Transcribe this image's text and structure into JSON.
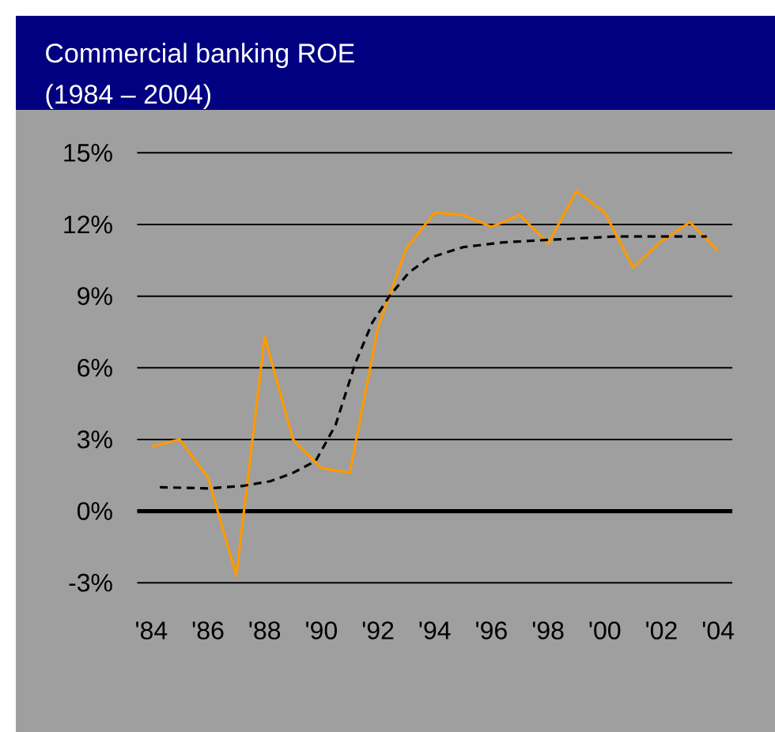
{
  "chart_data": {
    "type": "line",
    "title": "Commercial banking ROE",
    "subtitle": "(1984 – 2004)",
    "x": [
      1984,
      1985,
      1986,
      1987,
      1988,
      1989,
      1990,
      1991,
      1992,
      1993,
      1994,
      1995,
      1996,
      1997,
      1998,
      1999,
      2000,
      2001,
      2002,
      2003,
      2004
    ],
    "series": [
      {
        "color": "#ff9900",
        "values": [
          2.7,
          3.0,
          1.4,
          -2.7,
          7.3,
          3.0,
          1.8,
          1.6,
          7.7,
          11.0,
          12.5,
          12.4,
          11.9,
          12.4,
          11.2,
          13.4,
          12.5,
          10.2,
          11.3,
          12.1,
          10.9
        ]
      },
      {
        "type": "line",
        "color": "#000000",
        "line_style": "dashed",
        "x": [
          1984.3,
          1986,
          1987.2,
          1988.2,
          1989,
          1989.8,
          1990.5,
          1991.2,
          1991.8,
          1992.4,
          1993.1,
          1993.8,
          1995,
          1996.4,
          1997.9,
          2000.4,
          2003.6
        ],
        "values": [
          1.0,
          0.95,
          1.05,
          1.25,
          1.6,
          2.1,
          3.6,
          6.2,
          7.9,
          9.0,
          10.0,
          10.6,
          11.05,
          11.25,
          11.35,
          11.5,
          11.5
        ]
      }
    ],
    "xlim": [
      1983.5,
      2004.5
    ],
    "ylim": [
      -3,
      15
    ],
    "xticks": [
      {
        "value": 1984,
        "label": "'84"
      },
      {
        "value": 1986,
        "label": "'86"
      },
      {
        "value": 1988,
        "label": "'88"
      },
      {
        "value": 1990,
        "label": "'90"
      },
      {
        "value": 1992,
        "label": "'92"
      },
      {
        "value": 1994,
        "label": "'94"
      },
      {
        "value": 1996,
        "label": "'96"
      },
      {
        "value": 1998,
        "label": "'98"
      },
      {
        "value": 2000,
        "label": "'00"
      },
      {
        "value": 2002,
        "label": "'02"
      },
      {
        "value": 2004,
        "label": "'04"
      }
    ],
    "yticks": [
      {
        "value": -3,
        "label": "-3%"
      },
      {
        "value": 0,
        "label": "0%"
      },
      {
        "value": 3,
        "label": "3%"
      },
      {
        "value": 6,
        "label": "6%"
      },
      {
        "value": 9,
        "label": "9%"
      },
      {
        "value": 12,
        "label": "12%"
      },
      {
        "value": 15,
        "label": "15%"
      }
    ],
    "grid": "y",
    "ref_lines": [
      {
        "axis": "y",
        "value": 0,
        "color": "#000000"
      }
    ]
  }
}
